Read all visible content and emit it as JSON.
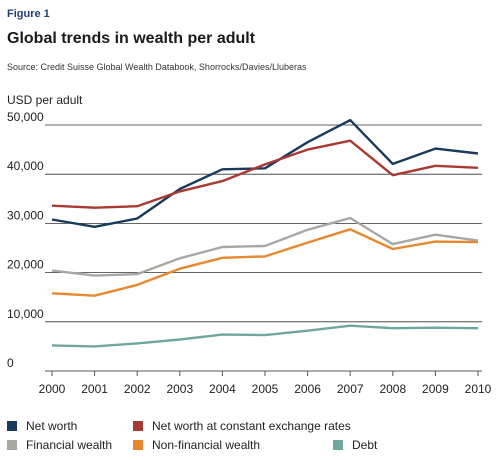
{
  "figure_label": "Figure 1",
  "title": "Global trends in wealth per adult",
  "source": "Source: Credit Suisse Global Wealth Databook, Shorrocks/Davies/Lluberas",
  "colors": {
    "net_worth": "#1a3a5c",
    "net_worth_constant": "#a83a33",
    "financial": "#a8a8a3",
    "non_financial": "#e8872f",
    "debt": "#6fa7a0"
  },
  "chart_data": {
    "type": "line",
    "title": "Global trends in wealth per adult",
    "ylabel": "USD per adult",
    "xlabel": "",
    "x": [
      "2000",
      "2001",
      "2002",
      "2003",
      "2004",
      "2005",
      "2006",
      "2007",
      "2008",
      "2009",
      "2010"
    ],
    "ylim": [
      0,
      50000
    ],
    "yticks": [
      "0",
      "10,000",
      "20,000",
      "30,000",
      "40,000",
      "50,000"
    ],
    "grid": "horizontal",
    "legend_position": "bottom",
    "series": [
      {
        "name": "Net worth",
        "color_key": "net_worth",
        "values": [
          30800,
          29300,
          31000,
          37000,
          41000,
          41200,
          46500,
          51000,
          42100,
          45200,
          44200
        ]
      },
      {
        "name": "Net worth at constant exchange rates",
        "color_key": "net_worth_constant",
        "values": [
          33600,
          33200,
          33500,
          36500,
          38600,
          42000,
          45000,
          46800,
          39800,
          41700,
          41300
        ]
      },
      {
        "name": "Financial wealth",
        "color_key": "financial",
        "values": [
          20400,
          19400,
          19700,
          22900,
          25200,
          25400,
          28700,
          31100,
          25800,
          27700,
          26500
        ]
      },
      {
        "name": "Non-financial wealth",
        "color_key": "non_financial",
        "values": [
          15800,
          15300,
          17500,
          20800,
          23000,
          23300,
          26100,
          28800,
          24800,
          26300,
          26200
        ]
      },
      {
        "name": "Debt",
        "color_key": "debt",
        "values": [
          5200,
          5000,
          5600,
          6400,
          7400,
          7300,
          8200,
          9200,
          8700,
          8800,
          8700
        ]
      }
    ]
  }
}
